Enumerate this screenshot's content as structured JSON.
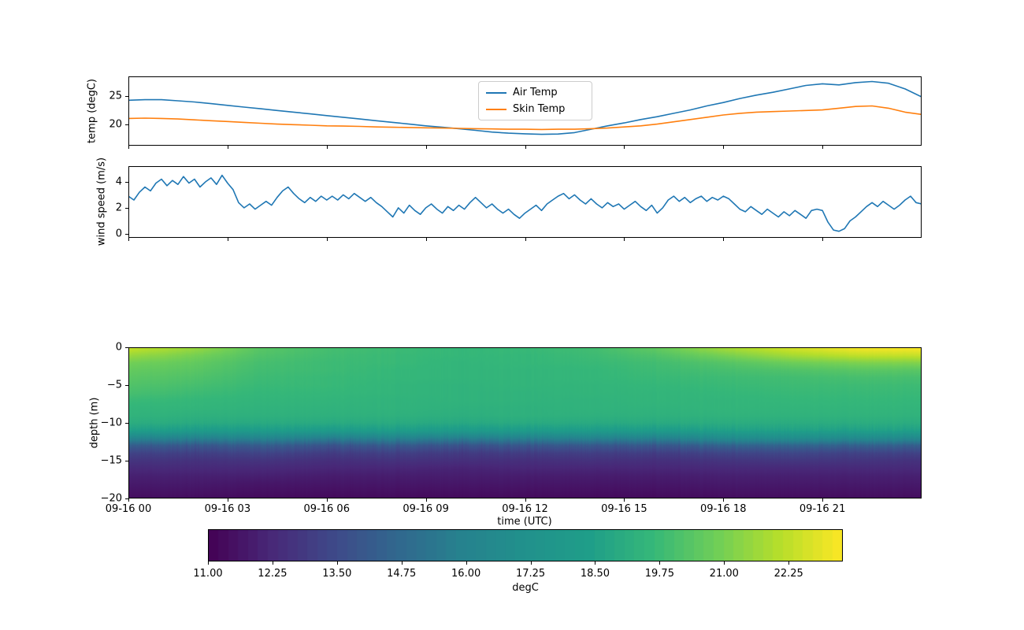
{
  "figure": {
    "background": "#ffffff"
  },
  "colors": {
    "air_temp": "#1f77b4",
    "skin_temp": "#ff7f0e",
    "wind": "#1f77b4",
    "axis": "#000000",
    "viridis": [
      [
        0,
        "#440154"
      ],
      [
        0.1,
        "#482878"
      ],
      [
        0.2,
        "#3e4a89"
      ],
      [
        0.3,
        "#31688e"
      ],
      [
        0.4,
        "#26828e"
      ],
      [
        0.5,
        "#21918c"
      ],
      [
        0.6,
        "#1f9e89"
      ],
      [
        0.7,
        "#35b779"
      ],
      [
        0.8,
        "#6ece58"
      ],
      [
        0.9,
        "#b5de2b"
      ],
      [
        1,
        "#fde725"
      ]
    ]
  },
  "xaxis": {
    "label": "time (UTC)",
    "tick_hours": [
      0,
      3,
      6,
      9,
      12,
      15,
      18,
      21
    ],
    "tick_labels": [
      "09-16 00",
      "09-16 03",
      "09-16 06",
      "09-16 09",
      "09-16 12",
      "09-16 15",
      "09-16 18",
      "09-16 21"
    ],
    "xlim_hours": [
      0,
      24
    ]
  },
  "chart_data": [
    {
      "type": "line",
      "ylabel": "temp (degC)",
      "yticks": [
        25,
        20
      ],
      "ytick_labels": [
        "25",
        "20"
      ],
      "ylim": [
        16.3,
        28.5
      ],
      "xlim": [
        0,
        24
      ],
      "grid": false,
      "legend": {
        "position": "upper center",
        "entries": [
          "Air Temp",
          "Skin Temp"
        ]
      },
      "series": [
        {
          "name": "Air Temp",
          "color": "#1f77b4",
          "x0": 0,
          "dx": 0.5,
          "values": [
            24.3,
            24.4,
            24.4,
            24.2,
            24.0,
            23.7,
            23.4,
            23.1,
            22.8,
            22.5,
            22.2,
            21.9,
            21.6,
            21.3,
            21.0,
            20.7,
            20.4,
            20.1,
            19.8,
            19.55,
            19.3,
            19.0,
            18.7,
            18.5,
            18.4,
            18.3,
            18.35,
            18.6,
            19.2,
            19.8,
            20.3,
            20.9,
            21.4,
            22.0,
            22.6,
            23.3,
            23.9,
            24.6,
            25.2,
            25.7,
            26.3,
            26.9,
            27.2,
            27.0,
            27.4,
            27.6,
            27.3,
            26.3,
            24.9
          ]
        },
        {
          "name": "Skin Temp",
          "color": "#ff7f0e",
          "x0": 0,
          "dx": 0.5,
          "values": [
            21.1,
            21.15,
            21.1,
            21.0,
            20.85,
            20.7,
            20.55,
            20.4,
            20.25,
            20.1,
            20.0,
            19.9,
            19.8,
            19.75,
            19.7,
            19.6,
            19.55,
            19.5,
            19.45,
            19.4,
            19.35,
            19.3,
            19.25,
            19.2,
            19.2,
            19.15,
            19.2,
            19.2,
            19.3,
            19.4,
            19.6,
            19.8,
            20.1,
            20.5,
            20.9,
            21.3,
            21.7,
            22.0,
            22.2,
            22.3,
            22.4,
            22.5,
            22.6,
            22.9,
            23.2,
            23.3,
            22.9,
            22.2,
            21.8
          ]
        }
      ]
    },
    {
      "type": "line",
      "ylabel": "wind speed (m/s)",
      "yticks": [
        4,
        2,
        0
      ],
      "ytick_labels": [
        "4",
        "2",
        "0"
      ],
      "ylim": [
        -0.3,
        5.2
      ],
      "xlim": [
        0,
        24
      ],
      "grid": false,
      "series": [
        {
          "name": "wind speed",
          "color": "#1f77b4",
          "x0": 0,
          "dx": 0.16667,
          "values": [
            2.9,
            2.6,
            3.2,
            3.6,
            3.3,
            3.9,
            4.2,
            3.7,
            4.1,
            3.8,
            4.4,
            3.9,
            4.2,
            3.6,
            4.0,
            4.3,
            3.8,
            4.5,
            3.9,
            3.4,
            2.4,
            2.0,
            2.3,
            1.9,
            2.2,
            2.5,
            2.2,
            2.8,
            3.3,
            3.6,
            3.1,
            2.7,
            2.4,
            2.8,
            2.5,
            2.9,
            2.6,
            2.9,
            2.6,
            3.0,
            2.7,
            3.1,
            2.8,
            2.5,
            2.8,
            2.4,
            2.1,
            1.7,
            1.3,
            2.0,
            1.6,
            2.2,
            1.8,
            1.5,
            2.0,
            2.3,
            1.9,
            1.6,
            2.1,
            1.8,
            2.2,
            1.9,
            2.4,
            2.8,
            2.4,
            2.0,
            2.3,
            1.9,
            1.6,
            1.9,
            1.5,
            1.2,
            1.6,
            1.9,
            2.2,
            1.8,
            2.3,
            2.6,
            2.9,
            3.1,
            2.7,
            3.0,
            2.6,
            2.3,
            2.7,
            2.3,
            2.0,
            2.4,
            2.1,
            2.3,
            1.9,
            2.2,
            2.5,
            2.1,
            1.8,
            2.2,
            1.6,
            2.0,
            2.6,
            2.9,
            2.5,
            2.8,
            2.4,
            2.7,
            2.9,
            2.5,
            2.8,
            2.6,
            2.9,
            2.7,
            2.3,
            1.9,
            1.7,
            2.1,
            1.8,
            1.5,
            1.9,
            1.6,
            1.3,
            1.7,
            1.4,
            1.8,
            1.5,
            1.2,
            1.8,
            1.9,
            1.8,
            0.9,
            0.3,
            0.2,
            0.4,
            1.0,
            1.3,
            1.7,
            2.1,
            2.4,
            2.1,
            2.5,
            2.2,
            1.9,
            2.2,
            2.6,
            2.9,
            2.4,
            2.3
          ]
        }
      ]
    },
    {
      "type": "heatmap",
      "ylabel": "depth (m)",
      "xlabel": "time (UTC)",
      "yticks": [
        0,
        -5,
        -10,
        -15,
        -20
      ],
      "ytick_labels": [
        "0",
        "−5",
        "−10",
        "−15",
        "−20"
      ],
      "ylim": [
        -20,
        0
      ],
      "x_hours": [
        0,
        2,
        4,
        6,
        8,
        10,
        12,
        14,
        16,
        18,
        20,
        22,
        24
      ],
      "depths": [
        0,
        -1,
        -2,
        -3,
        -4,
        -5,
        -6,
        -7,
        -8,
        -9,
        -10,
        -11,
        -12,
        -13,
        -14,
        -15,
        -16,
        -17,
        -18,
        -19,
        -20
      ],
      "values": [
        [
          22.4,
          21.6,
          20.4,
          20.0,
          19.8,
          19.6,
          19.7,
          19.9,
          20.6,
          21.8,
          22.6,
          23.2,
          23.3
        ],
        [
          21.6,
          21.0,
          20.2,
          19.9,
          19.7,
          19.6,
          19.6,
          19.8,
          20.2,
          21.0,
          21.8,
          22.3,
          22.4
        ],
        [
          20.9,
          20.6,
          20.0,
          19.8,
          19.7,
          19.5,
          19.6,
          19.7,
          19.9,
          20.3,
          20.8,
          21.1,
          21.2
        ],
        [
          20.6,
          20.4,
          19.9,
          19.8,
          19.6,
          19.5,
          19.5,
          19.6,
          19.8,
          20.0,
          20.2,
          20.4,
          20.4
        ],
        [
          20.4,
          20.2,
          19.8,
          19.7,
          19.6,
          19.5,
          19.5,
          19.6,
          19.7,
          19.8,
          19.9,
          20.0,
          20.0
        ],
        [
          20.2,
          20.0,
          19.7,
          19.7,
          19.5,
          19.4,
          19.5,
          19.5,
          19.6,
          19.7,
          19.8,
          19.8,
          19.8
        ],
        [
          20.0,
          19.8,
          19.6,
          19.6,
          19.5,
          19.4,
          19.4,
          19.5,
          19.5,
          19.6,
          19.7,
          19.7,
          19.7
        ],
        [
          19.7,
          19.6,
          19.5,
          19.5,
          19.4,
          19.4,
          19.4,
          19.4,
          19.5,
          19.5,
          19.6,
          19.6,
          19.6
        ],
        [
          19.5,
          19.5,
          19.4,
          19.4,
          19.4,
          19.3,
          19.3,
          19.4,
          19.4,
          19.5,
          19.5,
          19.5,
          19.5
        ],
        [
          19.4,
          19.3,
          19.3,
          19.3,
          19.3,
          19.2,
          19.3,
          19.3,
          19.3,
          19.4,
          19.4,
          19.4,
          19.4
        ],
        [
          19.1,
          19.0,
          19.0,
          19.0,
          19.0,
          18.9,
          19.0,
          19.0,
          19.0,
          19.1,
          19.1,
          19.1,
          19.1
        ],
        [
          18.4,
          18.2,
          18.3,
          18.2,
          18.3,
          18.1,
          18.2,
          18.3,
          18.2,
          18.5,
          18.6,
          18.5,
          18.5
        ],
        [
          16.2,
          16.0,
          16.3,
          15.9,
          16.1,
          15.8,
          16.0,
          16.2,
          16.0,
          16.8,
          17.0,
          16.7,
          16.6
        ],
        [
          14.2,
          14.0,
          14.3,
          13.9,
          14.1,
          13.8,
          14.0,
          14.1,
          14.0,
          14.5,
          14.6,
          14.4,
          14.3
        ],
        [
          13.2,
          13.1,
          13.3,
          13.0,
          13.1,
          12.9,
          13.0,
          13.1,
          13.0,
          13.3,
          13.4,
          13.2,
          13.2
        ],
        [
          12.7,
          12.6,
          12.7,
          12.5,
          12.6,
          12.5,
          12.5,
          12.6,
          12.5,
          12.7,
          12.8,
          12.7,
          12.6
        ],
        [
          12.3,
          12.3,
          12.3,
          12.2,
          12.2,
          12.1,
          12.2,
          12.2,
          12.2,
          12.3,
          12.3,
          12.3,
          12.3
        ],
        [
          12.0,
          12.0,
          12.0,
          11.9,
          11.9,
          11.9,
          11.9,
          11.9,
          11.9,
          12.0,
          12.0,
          12.0,
          12.0
        ],
        [
          11.8,
          11.8,
          11.7,
          11.7,
          11.7,
          11.7,
          11.7,
          11.7,
          11.7,
          11.8,
          11.8,
          11.8,
          11.8
        ],
        [
          11.6,
          11.6,
          11.5,
          11.5,
          11.5,
          11.5,
          11.5,
          11.5,
          11.5,
          11.6,
          11.6,
          11.6,
          11.6
        ],
        [
          11.4,
          11.4,
          11.3,
          11.3,
          11.3,
          11.3,
          11.3,
          11.3,
          11.3,
          11.4,
          11.4,
          11.4,
          11.4
        ]
      ],
      "colorbar": {
        "label": "degC",
        "vmin": 11.0,
        "vmax": 23.3,
        "ticks": [
          11.0,
          12.25,
          13.5,
          14.75,
          16.0,
          17.25,
          18.5,
          19.75,
          21.0,
          22.25
        ],
        "tick_labels": [
          "11.00",
          "12.25",
          "13.50",
          "14.75",
          "16.00",
          "17.25",
          "18.50",
          "19.75",
          "21.00",
          "22.25"
        ]
      }
    }
  ]
}
